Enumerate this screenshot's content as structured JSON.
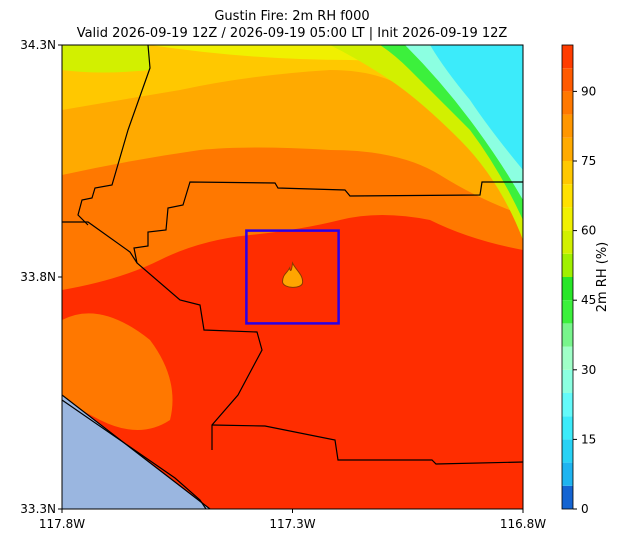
{
  "chart_data": {
    "type": "contourf",
    "title": "Gustin Fire: 2m RH f000",
    "subtitle": "Valid 2026-09-19 12Z / 2026-09-19 05:00 LT | Init 2026-09-19 12Z",
    "xlim": [
      -117.8,
      -116.8
    ],
    "ylim": [
      33.3,
      34.3
    ],
    "xticks": [
      {
        "value": -117.8,
        "label": "117.8W"
      },
      {
        "value": -117.3,
        "label": "117.3W"
      },
      {
        "value": -116.8,
        "label": "116.8W"
      }
    ],
    "yticks": [
      {
        "value": 33.3,
        "label": "33.3N"
      },
      {
        "value": 33.8,
        "label": "33.8N"
      },
      {
        "value": 34.3,
        "label": "34.3N"
      }
    ],
    "box": {
      "lon": [
        -117.4,
        -117.2
      ],
      "lat": [
        33.7,
        33.9
      ],
      "color": "#2a00e6"
    },
    "fire": {
      "lon": -117.3,
      "lat": 33.8
    },
    "colorbar": {
      "label": "2m RH (%)",
      "lim": [
        0,
        100
      ],
      "ticks": [
        0,
        15,
        30,
        45,
        60,
        75,
        90
      ],
      "levels": [
        0,
        5,
        10,
        15,
        20,
        25,
        30,
        35,
        40,
        45,
        50,
        55,
        60,
        65,
        70,
        75,
        80,
        85,
        90,
        95,
        100
      ],
      "colors": [
        "#1464d2",
        "#1eb4f0",
        "#28d2f5",
        "#3cebfa",
        "#64fafa",
        "#8cffe1",
        "#a0ffc8",
        "#78f58c",
        "#3cf03c",
        "#28e628",
        "#a0f000",
        "#d2f000",
        "#f0f000",
        "#ffe100",
        "#ffc800",
        "#ffaa00",
        "#ff9600",
        "#ff7800",
        "#ff5a00",
        "#ff3c00"
      ]
    }
  }
}
